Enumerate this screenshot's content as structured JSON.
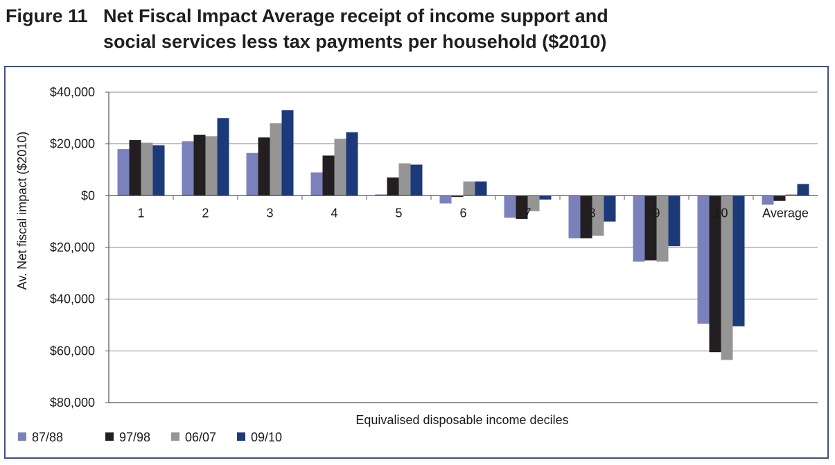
{
  "figure": {
    "number": "Figure 11",
    "title_line1": "Net Fiscal Impact Average receipt of income support and",
    "title_line2": "social services less tax payments per household ($2010)"
  },
  "chart_data": {
    "type": "bar",
    "title": "Net Fiscal Impact Average receipt of income support and social services less tax payments per household ($2010)",
    "xlabel": "Equivalised disposable income deciles",
    "ylabel": "Av. Net fiscal impact ($2010)",
    "ylim": [
      -80000,
      40000
    ],
    "yticks": [
      40000,
      20000,
      0,
      -20000,
      -40000,
      -60000,
      -80000
    ],
    "ytick_labels": [
      "$40,000",
      "$20,000",
      "$0",
      "$20,000",
      "$40,000",
      "$60,000",
      "$80,000"
    ],
    "grid": true,
    "legend_position": "bottom-left",
    "categories": [
      "1",
      "2",
      "3",
      "4",
      "5",
      "6",
      "7",
      "8",
      "9",
      "10",
      "Average"
    ],
    "series": [
      {
        "name": "87/88",
        "color": "#7a81bb",
        "values": [
          18000,
          21000,
          16500,
          9000,
          500,
          -3000,
          -8500,
          -16500,
          -25500,
          -49500,
          -3500
        ]
      },
      {
        "name": "97/98",
        "color": "#231f20",
        "values": [
          21500,
          23500,
          22500,
          15500,
          7000,
          -500,
          -9000,
          -16500,
          -25000,
          -60500,
          -2000
        ]
      },
      {
        "name": "06/07",
        "color": "#959595",
        "values": [
          20500,
          23000,
          28000,
          22000,
          12500,
          5500,
          -6000,
          -15500,
          -25500,
          -63500,
          500
        ]
      },
      {
        "name": "09/10",
        "color": "#1c3a7a",
        "values": [
          19500,
          30000,
          33000,
          24500,
          12000,
          5500,
          -1500,
          -10000,
          -19500,
          -50500,
          4500
        ]
      }
    ]
  }
}
